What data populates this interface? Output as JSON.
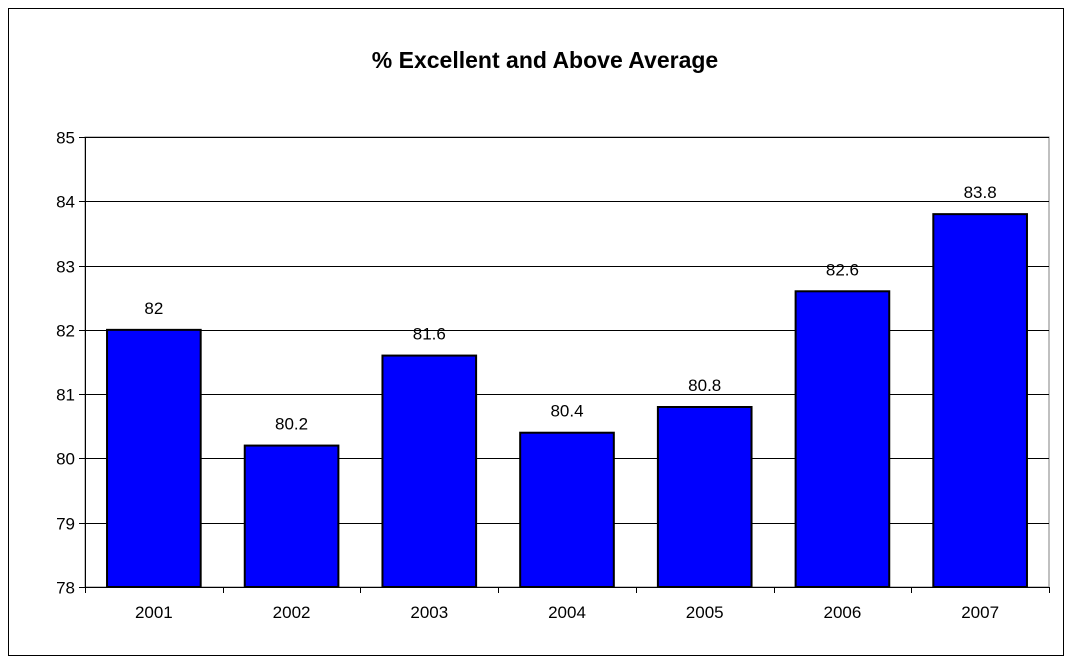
{
  "chart_data": {
    "type": "bar",
    "title": "% Excellent and Above Average",
    "categories": [
      "2001",
      "2002",
      "2003",
      "2004",
      "2005",
      "2006",
      "2007"
    ],
    "values": [
      82,
      80.2,
      81.6,
      80.4,
      80.8,
      82.6,
      83.8
    ],
    "data_labels": [
      "82",
      "80.2",
      "81.6",
      "80.4",
      "80.8",
      "82.6",
      "83.8"
    ],
    "y_ticks": [
      "85",
      "84",
      "83",
      "82",
      "81",
      "80",
      "79",
      "78"
    ],
    "ylim": [
      78,
      85
    ],
    "xlabel": "",
    "ylabel": "",
    "grid": true,
    "legend": "none",
    "colors": {
      "bar": "#0000FF",
      "bar_edge": "#000000",
      "grid": "#000000",
      "background": "#FFFFFF"
    }
  }
}
